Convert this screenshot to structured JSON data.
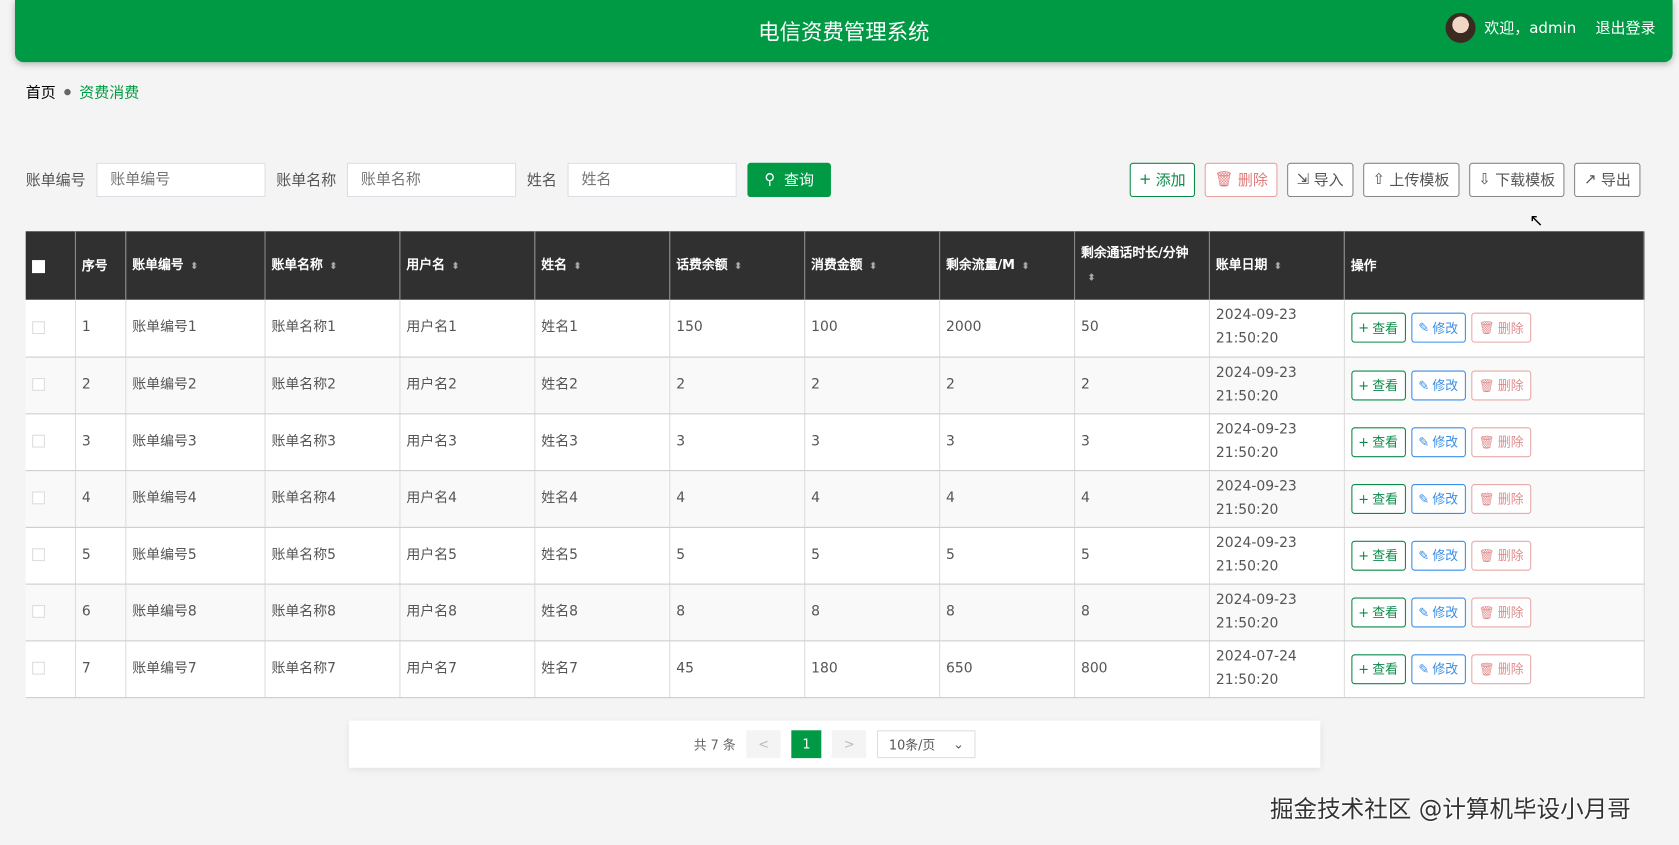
{
  "header": {
    "title": "电信资费管理系统",
    "welcome": "欢迎，admin",
    "logout": "退出登录"
  },
  "breadcrumb": {
    "home": "首页",
    "current": "资费消费"
  },
  "search": {
    "bill_no_label": "账单编号",
    "bill_no_placeholder": "账单编号",
    "bill_name_label": "账单名称",
    "bill_name_placeholder": "账单名称",
    "name_label": "姓名",
    "name_placeholder": "姓名",
    "query": "查询"
  },
  "toolbar": {
    "add": "添加",
    "delete": "删除",
    "import": "导入",
    "upload_template": "上传模板",
    "download_template": "下载模板",
    "export": "导出"
  },
  "table": {
    "headers": [
      "序号",
      "账单编号",
      "账单名称",
      "用户名",
      "姓名",
      "话费余额",
      "消费金额",
      "剩余流量/M",
      "剩余通话时长/分钟",
      "账单日期",
      "操作"
    ],
    "actions": {
      "view": "查看",
      "edit": "修改",
      "delete": "删除"
    },
    "rows": [
      [
        "1",
        "账单编号1",
        "账单名称1",
        "用户名1",
        "姓名1",
        "150",
        "100",
        "2000",
        "50",
        "2024-09-23 21:50:20"
      ],
      [
        "2",
        "账单编号2",
        "账单名称2",
        "用户名2",
        "姓名2",
        "2",
        "2",
        "2",
        "2",
        "2024-09-23 21:50:20"
      ],
      [
        "3",
        "账单编号3",
        "账单名称3",
        "用户名3",
        "姓名3",
        "3",
        "3",
        "3",
        "3",
        "2024-09-23 21:50:20"
      ],
      [
        "4",
        "账单编号4",
        "账单名称4",
        "用户名4",
        "姓名4",
        "4",
        "4",
        "4",
        "4",
        "2024-09-23 21:50:20"
      ],
      [
        "5",
        "账单编号5",
        "账单名称5",
        "用户名5",
        "姓名5",
        "5",
        "5",
        "5",
        "5",
        "2024-09-23 21:50:20"
      ],
      [
        "6",
        "账单编号8",
        "账单名称8",
        "用户名8",
        "姓名8",
        "8",
        "8",
        "8",
        "8",
        "2024-09-23 21:50:20"
      ],
      [
        "7",
        "账单编号7",
        "账单名称7",
        "用户名7",
        "姓名7",
        "45",
        "180",
        "650",
        "800",
        "2024-07-24 21:50:20"
      ]
    ]
  },
  "pagination": {
    "total": "共 7 条",
    "current_page": "1",
    "page_size": "10条/页"
  },
  "watermark": "掘金技术社区 @计算机毕设小月哥",
  "colors": {
    "primary": "#009a44",
    "header_bg": "#303030",
    "danger": "#e07b7b",
    "edit": "#3a8ee6"
  }
}
